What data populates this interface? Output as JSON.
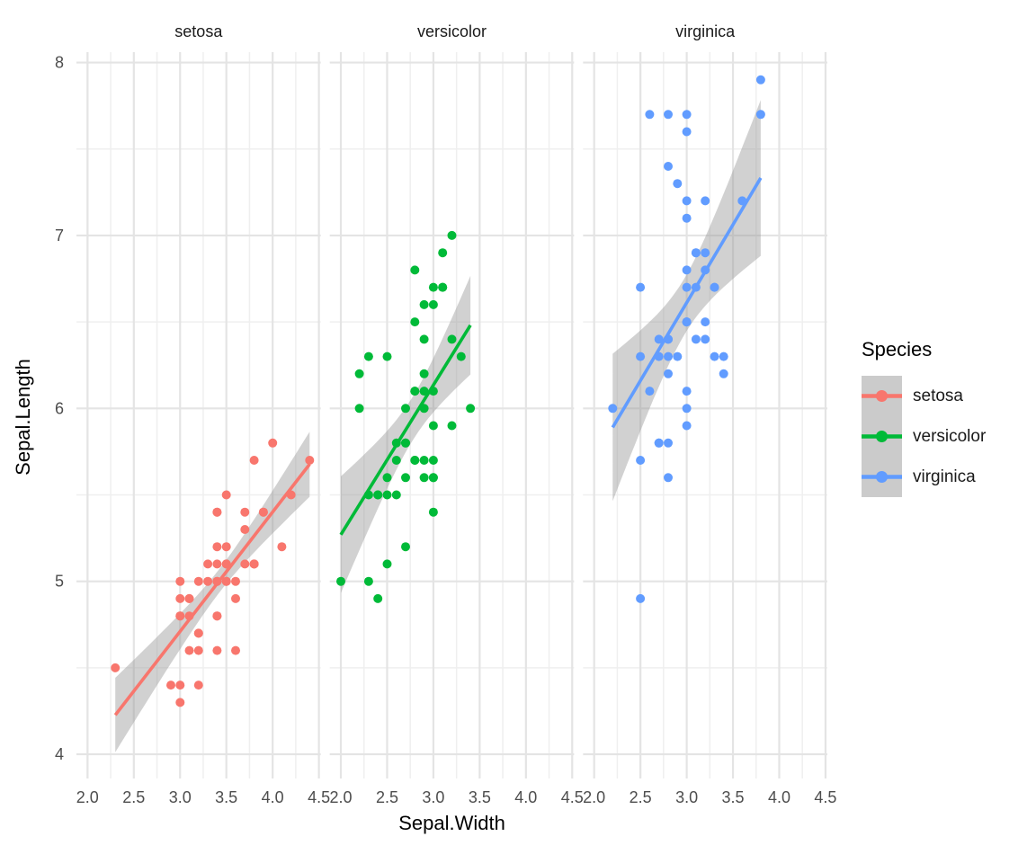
{
  "legend": {
    "title": "Species",
    "key_background": "#CBCBCB",
    "items": [
      {
        "label": "setosa",
        "color": "#F8766D"
      },
      {
        "label": "versicolor",
        "color": "#00BA38"
      },
      {
        "label": "virginica",
        "color": "#619CFF"
      }
    ]
  },
  "chart_data": {
    "type": "scatter",
    "title": "",
    "xlabel": "Sepal.Width",
    "ylabel": "Sepal.Length",
    "facets": [
      "setosa",
      "versicolor",
      "virginica"
    ],
    "smoother": "linear fit with 95% confidence ribbon",
    "ribbon_color": "rgba(153,153,153,0.45)",
    "grid_major_color": "#E4E4E4",
    "grid_minor_color": "#EFEFEF",
    "xlim": [
      1.88,
      4.52
    ],
    "ylim": [
      3.86,
      8.06
    ],
    "x_ticks": [
      2.0,
      2.5,
      3.0,
      3.5,
      4.0,
      4.5
    ],
    "x_tick_labels": [
      "2.0",
      "2.5",
      "3.0",
      "3.5",
      "4.0",
      "4.5"
    ],
    "x_minor": [
      2.25,
      2.75,
      3.25,
      3.75,
      4.25
    ],
    "y_ticks": [
      4,
      5,
      6,
      7,
      8
    ],
    "y_tick_labels": [
      "4",
      "5",
      "6",
      "7",
      "8"
    ],
    "y_minor": [
      4.5,
      5.5,
      6.5,
      7.5
    ],
    "series": [
      {
        "name": "setosa",
        "color": "#F8766D",
        "x": [
          3.5,
          3.0,
          3.2,
          3.1,
          3.6,
          3.9,
          3.4,
          3.4,
          2.9,
          3.1,
          3.7,
          3.4,
          3.0,
          3.0,
          4.0,
          4.4,
          3.9,
          3.5,
          3.8,
          3.8,
          3.4,
          3.7,
          3.6,
          3.3,
          3.4,
          3.0,
          3.4,
          3.5,
          3.4,
          3.2,
          3.1,
          3.4,
          4.1,
          4.2,
          3.1,
          3.2,
          3.5,
          3.6,
          3.0,
          3.4,
          3.5,
          2.3,
          3.2,
          3.5,
          3.8,
          3.0,
          3.8,
          3.2,
          3.7,
          3.3
        ],
        "y": [
          5.1,
          4.9,
          4.7,
          4.6,
          5.0,
          5.4,
          4.6,
          5.0,
          4.4,
          4.9,
          5.4,
          4.8,
          4.8,
          4.3,
          5.8,
          5.7,
          5.4,
          5.1,
          5.7,
          5.1,
          5.4,
          5.1,
          4.6,
          5.1,
          4.8,
          5.0,
          5.0,
          5.2,
          5.2,
          4.7,
          4.8,
          5.4,
          5.2,
          5.5,
          4.9,
          5.0,
          5.5,
          4.9,
          4.4,
          5.1,
          5.0,
          4.5,
          4.4,
          5.0,
          5.1,
          4.8,
          5.1,
          4.6,
          5.3,
          5.0
        ]
      },
      {
        "name": "versicolor",
        "color": "#00BA38",
        "x": [
          3.2,
          3.2,
          3.1,
          2.3,
          2.8,
          2.8,
          3.3,
          2.4,
          2.9,
          2.7,
          2.0,
          3.0,
          2.2,
          2.9,
          2.9,
          3.1,
          3.0,
          2.7,
          2.2,
          2.5,
          3.2,
          2.8,
          2.5,
          2.8,
          2.9,
          3.0,
          2.8,
          3.0,
          2.9,
          2.6,
          2.4,
          2.4,
          2.7,
          2.7,
          3.0,
          3.4,
          3.1,
          2.3,
          3.0,
          2.5,
          2.6,
          3.0,
          2.6,
          2.3,
          2.7,
          3.0,
          2.9,
          2.9,
          2.5,
          2.8
        ],
        "y": [
          7.0,
          6.4,
          6.9,
          5.5,
          6.5,
          5.7,
          6.3,
          4.9,
          6.6,
          5.2,
          5.0,
          5.9,
          6.0,
          6.1,
          5.6,
          6.7,
          5.6,
          5.8,
          6.2,
          5.6,
          5.9,
          6.1,
          6.3,
          6.1,
          6.4,
          6.6,
          6.8,
          6.7,
          6.0,
          5.7,
          5.5,
          5.5,
          5.8,
          6.0,
          5.4,
          6.0,
          6.7,
          6.3,
          5.6,
          5.5,
          5.5,
          6.1,
          5.8,
          5.0,
          5.6,
          5.7,
          5.7,
          6.2,
          5.1,
          5.7
        ]
      },
      {
        "name": "virginica",
        "color": "#619CFF",
        "x": [
          3.3,
          2.7,
          3.0,
          2.9,
          3.0,
          3.0,
          2.5,
          2.9,
          2.5,
          3.6,
          3.2,
          2.7,
          3.0,
          2.5,
          2.8,
          3.2,
          3.0,
          3.8,
          2.6,
          2.2,
          3.2,
          2.8,
          2.8,
          2.7,
          3.3,
          3.2,
          2.8,
          3.0,
          2.8,
          3.0,
          2.8,
          3.8,
          2.8,
          2.8,
          2.6,
          3.0,
          3.4,
          3.1,
          3.0,
          3.1,
          3.1,
          3.1,
          2.7,
          3.2,
          3.3,
          3.0,
          2.5,
          3.0,
          3.4,
          3.0
        ],
        "y": [
          6.3,
          5.8,
          7.1,
          6.3,
          6.5,
          7.6,
          4.9,
          7.3,
          6.7,
          7.2,
          6.5,
          6.4,
          6.8,
          5.7,
          5.8,
          6.4,
          6.5,
          7.7,
          7.7,
          6.0,
          6.9,
          5.6,
          7.7,
          6.3,
          6.7,
          7.2,
          6.2,
          6.1,
          6.4,
          7.2,
          7.4,
          7.9,
          6.4,
          6.3,
          6.1,
          7.7,
          6.3,
          6.4,
          6.0,
          6.9,
          6.7,
          6.9,
          5.8,
          6.8,
          6.7,
          6.7,
          6.3,
          6.5,
          6.2,
          5.9
        ]
      }
    ]
  }
}
